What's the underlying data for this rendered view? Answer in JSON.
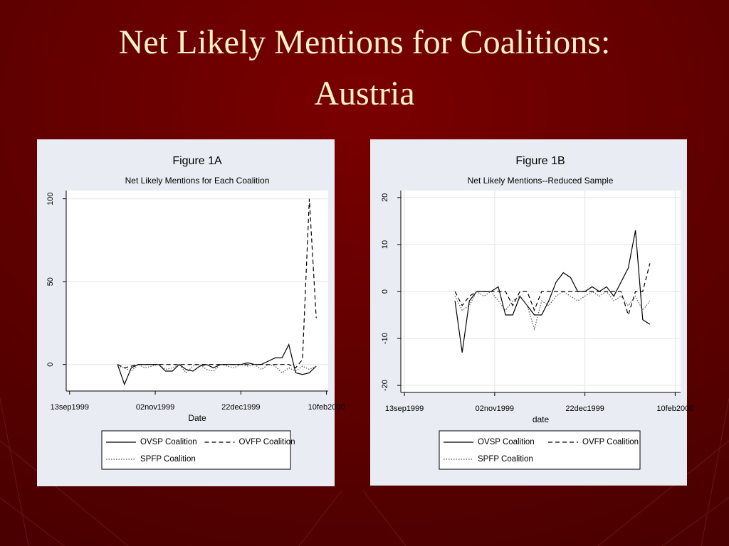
{
  "slide": {
    "title_lines": [
      "Net Likely Mentions for Coalitions:",
      "Austria"
    ]
  },
  "chart_data": [
    {
      "type": "line",
      "title": "Figure 1A",
      "subtitle": "Net Likely Mentions for Each Coalition",
      "x_label": "Date",
      "x": [
        "1999-10-11",
        "1999-10-15",
        "1999-10-19",
        "1999-10-23",
        "1999-10-27",
        "1999-10-31",
        "1999-11-04",
        "1999-11-08",
        "1999-11-12",
        "1999-11-16",
        "1999-11-20",
        "1999-11-24",
        "1999-11-28",
        "1999-12-02",
        "1999-12-06",
        "1999-12-10",
        "1999-12-14",
        "1999-12-18",
        "1999-12-22",
        "1999-12-26",
        "1999-12-30",
        "2000-01-03",
        "2000-01-07",
        "2000-01-11",
        "2000-01-15",
        "2000-01-19",
        "2000-01-23",
        "2000-01-27",
        "2000-01-31",
        "2000-02-04"
      ],
      "series": [
        {
          "name": "OVSP Coalition",
          "color": "#000000",
          "dash": "solid",
          "values": [
            0,
            -12,
            -2,
            0,
            0,
            0,
            0,
            -4,
            -4,
            0,
            -3,
            -4,
            -1,
            0,
            -2,
            0,
            0,
            0,
            0,
            1,
            0,
            0,
            2,
            4,
            4,
            12,
            -5,
            -6,
            -5,
            -1
          ]
        },
        {
          "name": "OVFP Coalition",
          "color": "#000000",
          "dash": "dashed",
          "values": [
            0,
            -2,
            -1,
            0,
            0,
            0,
            0,
            0,
            0,
            0,
            0,
            0,
            0,
            0,
            0,
            0,
            0,
            0,
            0,
            0,
            0,
            0,
            0,
            0,
            0,
            0,
            -2,
            3,
            100,
            28
          ]
        },
        {
          "name": "SPFP Coalition",
          "color": "#555555",
          "dash": "dotted",
          "values": [
            -1,
            -2,
            -4,
            0,
            -2,
            -1,
            0,
            -3,
            -2,
            0,
            -5,
            -1,
            0,
            -3,
            -4,
            0,
            -1,
            -2,
            0,
            -1,
            0,
            -3,
            0,
            -1,
            -5,
            -2,
            -4,
            -1,
            -3,
            -1
          ]
        }
      ],
      "xlim": [
        "1999-09-11",
        "2000-02-11"
      ],
      "xticks": [
        {
          "value": "1999-09-13",
          "label": "13sep1999"
        },
        {
          "value": "1999-11-02",
          "label": "02nov1999"
        },
        {
          "value": "1999-12-22",
          "label": "22dec1999"
        },
        {
          "value": "2000-02-10",
          "label": "10feb2000"
        }
      ],
      "ylim": [
        -16,
        105
      ],
      "yticks": [
        0,
        50,
        100
      ],
      "grid": true,
      "xgrid": false
    },
    {
      "type": "line",
      "title": "Figure 1B",
      "subtitle": "Net Likely Mentions--Reduced Sample",
      "x_label": "date",
      "x": [
        "1999-10-11",
        "1999-10-15",
        "1999-10-19",
        "1999-10-23",
        "1999-10-27",
        "1999-10-31",
        "1999-11-04",
        "1999-11-08",
        "1999-11-12",
        "1999-11-16",
        "1999-11-20",
        "1999-11-24",
        "1999-11-28",
        "1999-12-02",
        "1999-12-06",
        "1999-12-10",
        "1999-12-14",
        "1999-12-18",
        "1999-12-22",
        "1999-12-26",
        "1999-12-30",
        "2000-01-03",
        "2000-01-07",
        "2000-01-11",
        "2000-01-15",
        "2000-01-19",
        "2000-01-23",
        "2000-01-27"
      ],
      "series": [
        {
          "name": "OVSP Coalition",
          "color": "#000000",
          "dash": "solid",
          "values": [
            -2,
            -13,
            -2,
            0,
            0,
            0,
            1,
            -5,
            -5,
            -1,
            -3,
            -5,
            -5,
            -2,
            2,
            4,
            3,
            0,
            0,
            1,
            0,
            1,
            -1,
            2,
            5,
            13,
            -6,
            -7
          ]
        },
        {
          "name": "OVFP Coalition",
          "color": "#000000",
          "dash": "dashed",
          "values": [
            0,
            -3,
            -1,
            0,
            0,
            0,
            0,
            0,
            -3,
            0,
            0,
            -4,
            0,
            0,
            0,
            0,
            0,
            0,
            0,
            0,
            0,
            0,
            0,
            0,
            -5,
            0,
            0,
            6
          ]
        },
        {
          "name": "SPFP Coalition",
          "color": "#555555",
          "dash": "dotted",
          "values": [
            -1,
            -4,
            -3,
            0,
            -1,
            0,
            -2,
            -4,
            -2,
            -1,
            -3,
            -8,
            -2,
            -3,
            -1,
            0,
            -1,
            -2,
            -1,
            0,
            -1,
            0,
            -2,
            -1,
            -3,
            -1,
            -4,
            -2
          ]
        }
      ],
      "xlim": [
        "1999-09-11",
        "2000-02-13"
      ],
      "xticks": [
        {
          "value": "1999-09-13",
          "label": "13sep1999"
        },
        {
          "value": "1999-11-02",
          "label": "02nov1999"
        },
        {
          "value": "1999-12-22",
          "label": "22dec1999"
        },
        {
          "value": "2000-02-10",
          "label": "10feb2000"
        }
      ],
      "ylim": [
        -21.5,
        21.5
      ],
      "yticks": [
        -20,
        -10,
        0,
        10,
        20
      ],
      "grid": true,
      "xgrid": true
    }
  ]
}
